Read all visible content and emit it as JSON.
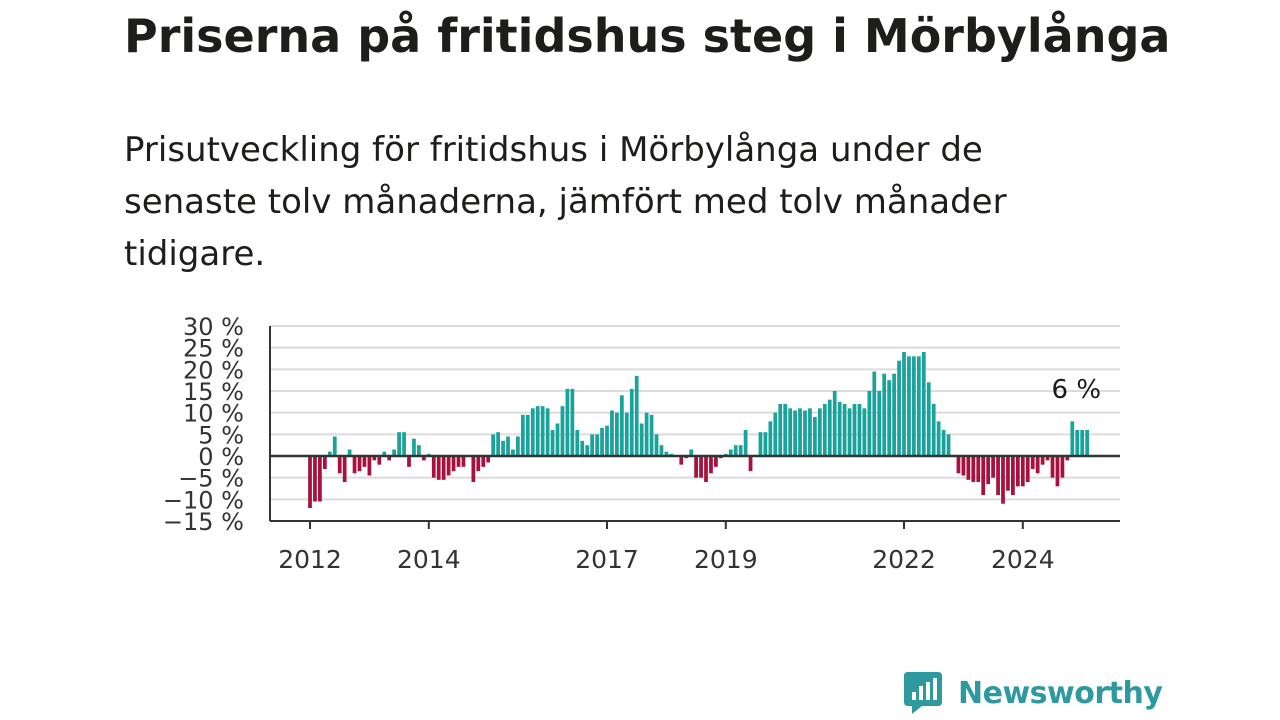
{
  "header": {
    "title": "Priserna på fritidshus steg i Mörbylånga",
    "subtitle": "Prisutveckling för fritidshus i Mörbylånga under de senaste tolv månaderna, jämfört med tolv månader tidigare."
  },
  "brand": {
    "name": "Newsworthy"
  },
  "colors": {
    "positive": "#1aa39b",
    "negative": "#a8103e",
    "grid": "#dcdcdc",
    "zero_line": "#333333",
    "brand": "#2e9aa0"
  },
  "chart_data": {
    "type": "bar",
    "title": "Priserna på fritidshus steg i Mörbylånga",
    "subtitle": "Prisutveckling för fritidshus i Mörbylånga under de senaste tolv månaderna, jämfört med tolv månader tidigare.",
    "unit": "%",
    "xlabel": "",
    "ylabel": "",
    "ylim": [
      -15,
      30
    ],
    "yticks": [
      30,
      25,
      20,
      15,
      10,
      5,
      0,
      -5,
      -10,
      -15
    ],
    "ytick_labels": [
      "30 %",
      "25 %",
      "20 %",
      "15 %",
      "10 %",
      "5 %",
      "0 %",
      "−5 %",
      "−10 %",
      "−15 %"
    ],
    "xticks": [
      2012,
      2014,
      2017,
      2019,
      2022,
      2024
    ],
    "grid": true,
    "start": "2012-01",
    "frequency": "monthly",
    "annotation": {
      "label": "6 %",
      "value": 6
    },
    "values": [
      -12,
      -10.5,
      -10.5,
      -3,
      1,
      4.5,
      -4,
      -6,
      1.5,
      -4,
      -3.5,
      -2.5,
      -4.5,
      -1,
      -2,
      1,
      -1,
      1.5,
      5.5,
      5.5,
      -2.5,
      4,
      2.5,
      -1,
      0.5,
      -5,
      -5.5,
      -5.5,
      -4.5,
      -3.5,
      -2.5,
      -2.5,
      0,
      -6,
      -3.5,
      -2.5,
      -1.5,
      5,
      5.5,
      3.5,
      4.5,
      1.5,
      4.5,
      9.5,
      9.5,
      11,
      11.5,
      11.5,
      11,
      6,
      7.5,
      11.5,
      15.5,
      15.5,
      6,
      3.5,
      2.5,
      5,
      5,
      6.5,
      7,
      10.5,
      10,
      14,
      10,
      15.5,
      18.5,
      7.5,
      10,
      9.5,
      5,
      2.5,
      1,
      0.5,
      0,
      -2,
      -0.5,
      1.5,
      -5,
      -5,
      -6,
      -4,
      -2.5,
      -0.5,
      0.5,
      1.5,
      2.5,
      2.5,
      6,
      -3.5,
      0,
      5.5,
      5.5,
      8,
      10,
      12,
      12,
      11,
      10.5,
      11,
      10.5,
      11,
      9,
      11,
      12,
      13,
      15,
      12.5,
      12,
      11,
      12,
      12,
      11,
      15,
      19.5,
      15,
      19,
      17.5,
      19,
      22,
      24,
      23,
      23,
      23,
      24,
      17,
      12,
      8,
      6,
      5,
      0,
      -4,
      -4.5,
      -5.5,
      -6,
      -6,
      -9,
      -6.5,
      -5,
      -9,
      -11,
      -8,
      -9,
      -7,
      -7,
      -6,
      -3,
      -4,
      -2,
      -1,
      -5,
      -7,
      -5,
      -1,
      8,
      6,
      6,
      6
    ]
  }
}
